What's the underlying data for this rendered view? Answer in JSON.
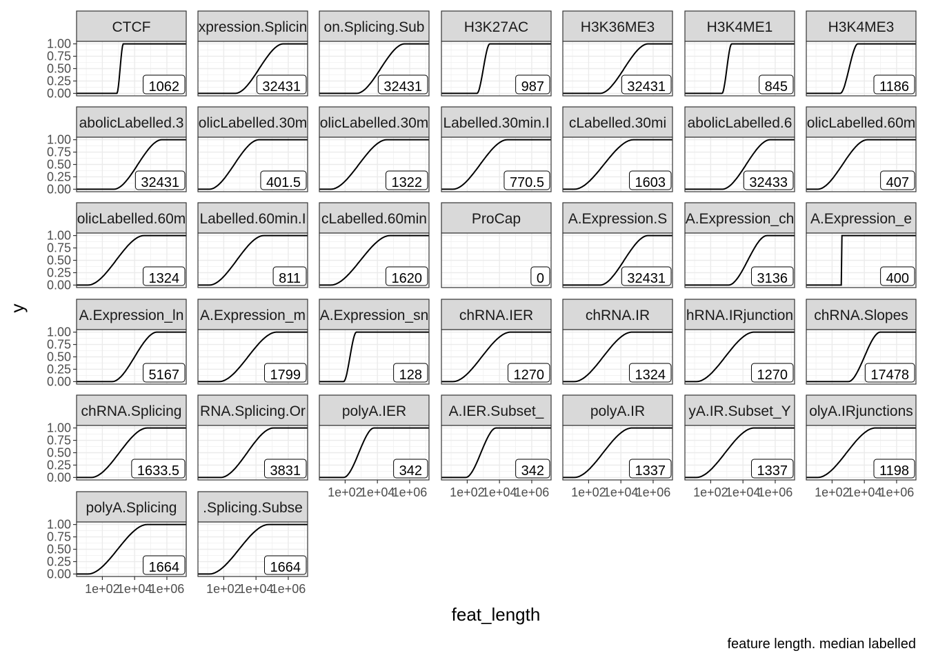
{
  "chart_data": {
    "type": "line",
    "subtype": "faceted-ecdf",
    "xlabel": "feat_length",
    "ylabel": "y",
    "caption": "feature length. median labelled",
    "x_scale": "log10",
    "x_ticks": [
      "1e+02",
      "1e+04",
      "1e+06"
    ],
    "y_ticks": [
      "0.00",
      "0.25",
      "0.50",
      "0.75",
      "1.00"
    ],
    "ylim": [
      0,
      1
    ],
    "grid": true,
    "ncol": 7,
    "panels": [
      {
        "strip": "CTCF",
        "median": "1062",
        "lo": 2.9,
        "hi": 3.3
      },
      {
        "strip": "xpression.Splicin",
        "median": "32431",
        "lo": 2.7,
        "hi": 5.7
      },
      {
        "strip": "on.Splicing.Sub",
        "median": "32431",
        "lo": 2.7,
        "hi": 5.7
      },
      {
        "strip": "H3K27AC",
        "median": "987",
        "lo": 2.6,
        "hi": 3.4
      },
      {
        "strip": "H3K36ME3",
        "median": "32431",
        "lo": 2.7,
        "hi": 5.7
      },
      {
        "strip": "H3K4ME1",
        "median": "845",
        "lo": 2.7,
        "hi": 3.3
      },
      {
        "strip": "H3K4ME3",
        "median": "1186",
        "lo": 2.5,
        "hi": 3.6
      },
      {
        "strip": "abolicLabelled.3",
        "median": "32431",
        "lo": 2.7,
        "hi": 5.7
      },
      {
        "strip": "olicLabelled.30m",
        "median": "401.5",
        "lo": 1.1,
        "hi": 4.2
      },
      {
        "strip": "olicLabelled.30m",
        "median": "1322",
        "lo": 1.1,
        "hi": 4.6
      },
      {
        "strip": "Labelled.30min.I",
        "median": "770.5",
        "lo": 1.1,
        "hi": 4.5
      },
      {
        "strip": "cLabelled.30mi",
        "median": "1603",
        "lo": 1.1,
        "hi": 4.8
      },
      {
        "strip": "abolicLabelled.6",
        "median": "32433",
        "lo": 2.7,
        "hi": 5.7
      },
      {
        "strip": "olicLabelled.60m",
        "median": "407",
        "lo": 1.1,
        "hi": 4.2
      },
      {
        "strip": "olicLabelled.60m",
        "median": "1324",
        "lo": 1.1,
        "hi": 4.6
      },
      {
        "strip": "Labelled.60min.I",
        "median": "811",
        "lo": 1.1,
        "hi": 4.5
      },
      {
        "strip": "cLabelled.60min",
        "median": "1620",
        "lo": 1.1,
        "hi": 4.8
      },
      {
        "strip": "ProCap",
        "median": "0",
        "lo": null,
        "hi": null
      },
      {
        "strip": "A.Expression.S",
        "median": "32431",
        "lo": 2.7,
        "hi": 5.7
      },
      {
        "strip": "A.Expression_ch",
        "median": "3136",
        "lo": 3.1,
        "hi": 5.5
      },
      {
        "strip": "A.Expression_e",
        "median": "400",
        "lo": 2.6,
        "hi": 2.602
      },
      {
        "strip": "A.Expression_ln",
        "median": "5167",
        "lo": 2.6,
        "hi": 5.4
      },
      {
        "strip": "A.Expression_m",
        "median": "1799",
        "lo": 1.7,
        "hi": 5.3
      },
      {
        "strip": "A.Expression_sn",
        "median": "128",
        "lo": 1.9,
        "hi": 2.7
      },
      {
        "strip": "chRNA.IER",
        "median": "1270",
        "lo": 1.1,
        "hi": 4.7
      },
      {
        "strip": "chRNA.IR",
        "median": "1324",
        "lo": 1.1,
        "hi": 4.7
      },
      {
        "strip": "hRNA.IRjunction",
        "median": "1270",
        "lo": 1.1,
        "hi": 4.7
      },
      {
        "strip": "chRNA.Slopes",
        "median": "17478",
        "lo": 3.0,
        "hi": 5.0
      },
      {
        "strip": "chRNA.Splicing",
        "median": "1633.5",
        "lo": 1.3,
        "hi": 4.8
      },
      {
        "strip": "RNA.Splicing.Or",
        "median": "3831",
        "lo": 1.8,
        "hi": 5.1
      },
      {
        "strip": "polyA.IER",
        "median": "342",
        "lo": 1.9,
        "hi": 3.8
      },
      {
        "strip": "A.IER.Subset_",
        "median": "342",
        "lo": 1.9,
        "hi": 3.8
      },
      {
        "strip": "polyA.IR",
        "median": "1337",
        "lo": 1.1,
        "hi": 4.7
      },
      {
        "strip": "yA.IR.Subset_Y",
        "median": "1337",
        "lo": 1.1,
        "hi": 4.7
      },
      {
        "strip": "olyA.IRjunctions",
        "median": "1198",
        "lo": 1.1,
        "hi": 4.7
      },
      {
        "strip": "polyA.Splicing",
        "median": "1664",
        "lo": 1.1,
        "hi": 4.8
      },
      {
        "strip": ".Splicing.Subse",
        "median": "1664",
        "lo": 1.1,
        "hi": 4.8
      }
    ]
  }
}
